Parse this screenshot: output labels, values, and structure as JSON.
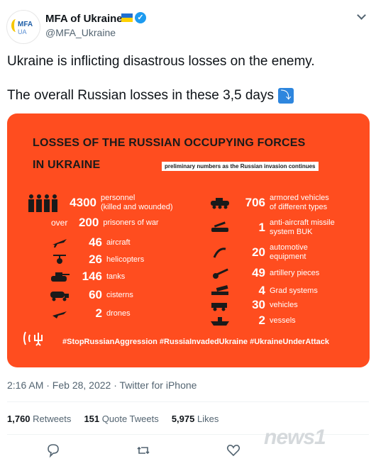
{
  "account": {
    "name": "MFA of Ukraine",
    "handle": "@MFA_Ukraine",
    "avatar_text1": "MFA",
    "avatar_text2": "UA"
  },
  "tweet": {
    "line1": "Ukraine is inflicting disastrous losses on the enemy.",
    "line2": "The overall Russian losses in these 3,5 days",
    "arrow_emoji": "⤵"
  },
  "card": {
    "title1": "LOSSES OF THE RUSSIAN OCCUPYING FORCES",
    "title2": "IN UKRAINE",
    "note": "preliminary numbers as the Russian invasion continues",
    "left_items": [
      {
        "prefix": "",
        "value": "4300",
        "label": "personnel",
        "label2": "(killed and wounded)",
        "icon": "soldiers-icon"
      },
      {
        "prefix": "over",
        "value": "200",
        "label": "prisoners of war",
        "label2": "",
        "icon": ""
      },
      {
        "prefix": "",
        "value": "46",
        "label": "aircraft",
        "label2": "",
        "icon": "aircraft-icon"
      },
      {
        "prefix": "",
        "value": "26",
        "label": "helicopters",
        "label2": "",
        "icon": "helicopter-icon"
      },
      {
        "prefix": "",
        "value": "146",
        "label": "tanks",
        "label2": "",
        "icon": "tank-icon"
      },
      {
        "prefix": "",
        "value": "60",
        "label": "cisterns",
        "label2": "",
        "icon": "cistern-icon"
      },
      {
        "prefix": "",
        "value": "2",
        "label": "drones",
        "label2": "",
        "icon": "drone-icon"
      }
    ],
    "right_items": [
      {
        "value": "706",
        "label": "armored vehicles",
        "label2": "of different types",
        "icon": "armored-vehicle-icon"
      },
      {
        "value": "1",
        "label": "anti-aircraft missile",
        "label2": "system BUK",
        "icon": "missile-system-icon"
      },
      {
        "value": "20",
        "label": "automotive",
        "label2": "equipment",
        "icon": "automotive-icon"
      },
      {
        "value": "49",
        "label": "artillery pieces",
        "label2": "",
        "icon": "artillery-icon"
      },
      {
        "value": "4",
        "label": "Grad systems",
        "label2": "",
        "icon": "grad-icon"
      },
      {
        "value": "30",
        "label": "vehicles",
        "label2": "",
        "icon": "vehicle-icon"
      },
      {
        "value": "2",
        "label": "vessels",
        "label2": "",
        "icon": "vessel-icon"
      }
    ],
    "hashtags": "#StopRussianAggression #RussiaInvadedUkraine #UkraineUnderAttack"
  },
  "meta": {
    "timestamp": "2:16 AM · Feb 28, 2022 · Twitter for iPhone"
  },
  "stats": {
    "retweets": "1,760",
    "retweets_label": "Retweets",
    "quotes": "151",
    "quotes_label": "Quote Tweets",
    "likes": "5,975",
    "likes_label": "Likes"
  },
  "watermark": "news1",
  "colors": {
    "card_bg": "#ff4d1f",
    "verified": "#1d9bf0",
    "flag_blue": "#1f6fd1",
    "flag_yellow": "#ffd100"
  }
}
